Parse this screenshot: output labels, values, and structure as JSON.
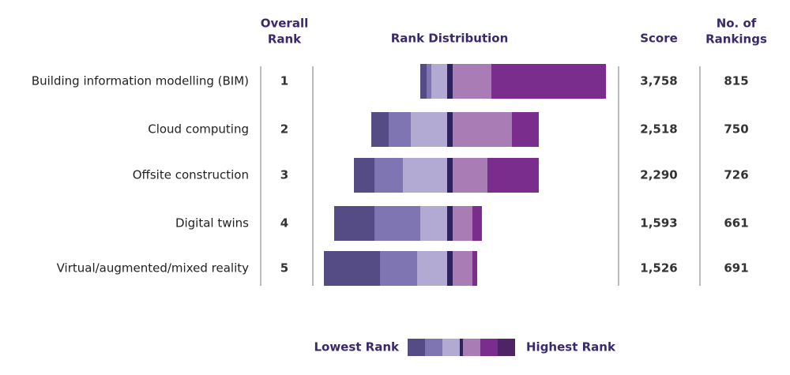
{
  "chart_data": {
    "type": "diverging_bar",
    "headers": {
      "rank": [
        "Overall",
        "Rank"
      ],
      "distribution": "Rank Distribution",
      "score": "Score",
      "count": [
        "No. of",
        "Rankings"
      ]
    },
    "categories": [
      "Building information modelling (BIM)",
      "Cloud computing",
      "Offsite construction",
      "Digital twins",
      "Virtual/augmented/mixed reality"
    ],
    "ranks": [
      1,
      2,
      3,
      4,
      5
    ],
    "series": [
      {
        "color": "#554c86",
        "values": [
          8,
          22,
          26,
          51,
          71
        ]
      },
      {
        "color": "#7f75b2",
        "values": [
          6,
          28,
          36,
          58,
          47
        ]
      },
      {
        "color": "#b2aad2",
        "values": [
          20,
          46,
          56,
          34,
          38
        ]
      },
      {
        "color": "#2e2160",
        "values": [
          7,
          7,
          7,
          7,
          7
        ]
      },
      {
        "color": "#a97cb6",
        "values": [
          49,
          75,
          44,
          25,
          25
        ]
      },
      {
        "color": "#7a2d8c",
        "values": [
          145,
          34,
          65,
          12,
          6
        ]
      }
    ],
    "center_series": 3,
    "scores": {
      "values": [
        3758,
        2518,
        2290,
        1593,
        1526
      ],
      "value_labels": [
        "3,758",
        "2,518",
        "2,290",
        "1,593",
        "1,526"
      ]
    },
    "counts": [
      815,
      750,
      726,
      661,
      691
    ],
    "legend": {
      "low": "Lowest Rank",
      "high": "Highest Rank",
      "colors": [
        "#554c86",
        "#7f75b2",
        "#b2aad2",
        "#2e2160",
        "#a97cb6",
        "#7a2d8c",
        "#4e2466"
      ]
    }
  }
}
